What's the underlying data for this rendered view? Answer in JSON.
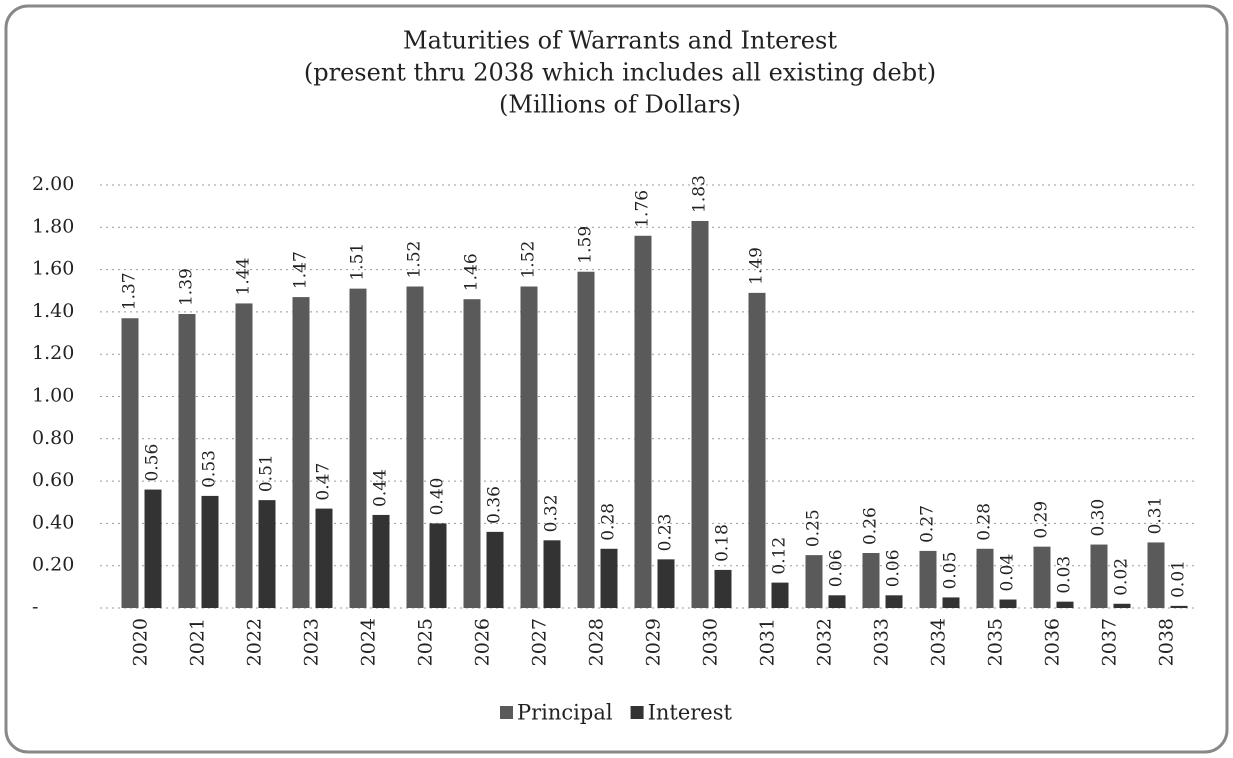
{
  "chart_data": {
    "type": "bar",
    "title_lines": [
      "Maturities of Warrants and Interest",
      "(present thru 2038 which includes all existing debt)",
      "(Millions of Dollars)"
    ],
    "categories": [
      "2020",
      "2021",
      "2022",
      "2023",
      "2024",
      "2025",
      "2026",
      "2027",
      "2028",
      "2029",
      "2030",
      "2031",
      "2032",
      "2033",
      "2034",
      "2035",
      "2036",
      "2037",
      "2038"
    ],
    "series": [
      {
        "name": "Principal",
        "color": "#5a5a5a",
        "values": [
          1.37,
          1.39,
          1.44,
          1.47,
          1.51,
          1.52,
          1.46,
          1.52,
          1.59,
          1.76,
          1.83,
          1.49,
          0.25,
          0.26,
          0.27,
          0.28,
          0.29,
          0.3,
          0.31
        ],
        "value_labels": [
          "1.37",
          "1.39",
          "1.44",
          "1.47",
          "1.51",
          "1.52",
          "1.46",
          "1.52",
          "1.59",
          "1.76",
          "1.83",
          "1.49",
          "0.25",
          "0.26",
          "0.27",
          "0.28",
          "0.29",
          "0.30",
          "0.31"
        ]
      },
      {
        "name": "Interest",
        "color": "#333333",
        "values": [
          0.56,
          0.53,
          0.51,
          0.47,
          0.44,
          0.4,
          0.36,
          0.32,
          0.28,
          0.23,
          0.18,
          0.12,
          0.06,
          0.06,
          0.05,
          0.04,
          0.03,
          0.02,
          0.01
        ],
        "value_labels": [
          "0.56",
          "0.53",
          "0.51",
          "0.47",
          "0.44",
          "0.40",
          "0.36",
          "0.32",
          "0.28",
          "0.23",
          "0.18",
          "0.12",
          "0.06",
          "0.06",
          "0.05",
          "0.04",
          "0.03",
          "0.02",
          "0.01"
        ]
      }
    ],
    "ylim": [
      0,
      2
    ],
    "yticks": [
      {
        "value": 0,
        "label": "-"
      },
      {
        "value": 0.2,
        "label": "0.20"
      },
      {
        "value": 0.4,
        "label": "0.40"
      },
      {
        "value": 0.6,
        "label": "0.60"
      },
      {
        "value": 0.8,
        "label": "0.80"
      },
      {
        "value": 1,
        "label": "1.00"
      },
      {
        "value": 1.2,
        "label": "1.20"
      },
      {
        "value": 1.4,
        "label": "1.40"
      },
      {
        "value": 1.6,
        "label": "1.60"
      },
      {
        "value": 1.8,
        "label": "1.80"
      },
      {
        "value": 2,
        "label": "2.00"
      }
    ],
    "grid": true,
    "legend": "bottom"
  }
}
